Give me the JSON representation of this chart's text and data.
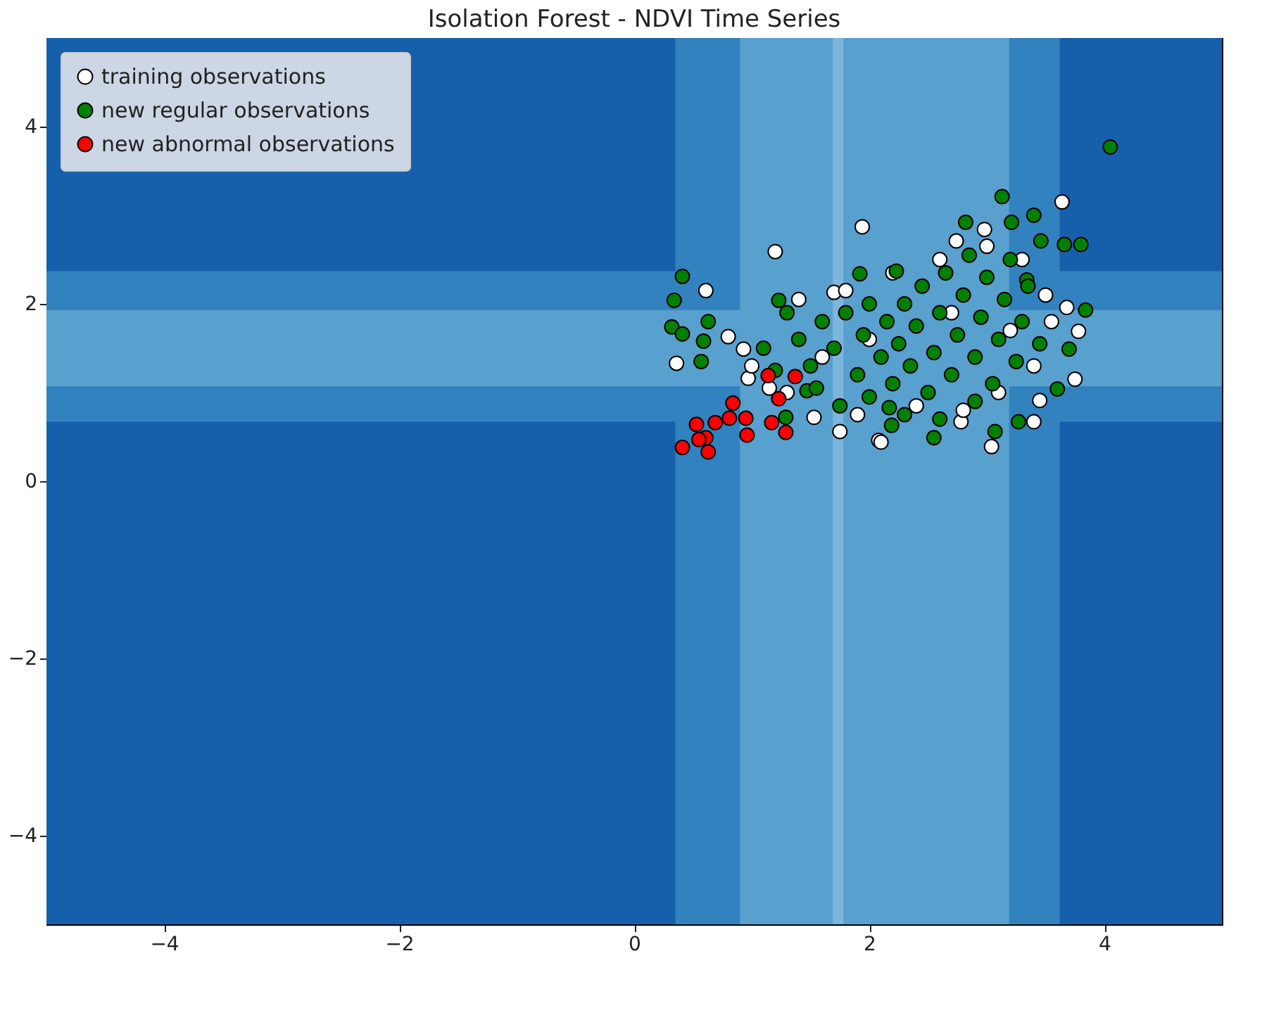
{
  "chart_data": {
    "type": "scatter",
    "title": "Isolation Forest - NDVI Time Series",
    "xlim": [
      -5,
      5
    ],
    "ylim": [
      -5,
      5
    ],
    "xticks": [
      -4,
      -2,
      0,
      2,
      4
    ],
    "yticks": [
      -4,
      -2,
      0,
      2,
      4
    ],
    "grid": false,
    "legend": "top left",
    "marker": "circle",
    "bands": [
      {
        "axis": "x",
        "from": -5,
        "to": 5,
        "color": "#1660ab"
      },
      {
        "axis": "y",
        "from": 0.67,
        "to": 2.37,
        "color": "#3282bf"
      },
      {
        "axis": "x",
        "from": 0.35,
        "to": 3.62,
        "color": "#3282bf"
      },
      {
        "axis": "y",
        "from": 1.07,
        "to": 1.93,
        "color": "#58a0cd"
      },
      {
        "axis": "x",
        "from": 0.9,
        "to": 3.19,
        "color": "#58a0cd"
      },
      {
        "axis": "x",
        "from": 1.69,
        "to": 1.78,
        "color": "#7db5dd"
      }
    ],
    "series": [
      {
        "name": "training observations",
        "color": "#ffffff",
        "x": [
          1.94,
          1.2,
          0.61,
          0.36,
          0.8,
          0.93,
          0.97,
          1.53,
          1.75,
          2.08,
          1.7,
          3.64,
          3.68,
          3.78,
          3.75,
          3.45,
          3.4,
          2.78,
          3.04,
          2.1,
          2.74,
          2.98,
          1.4,
          1.8,
          2.2,
          2.6,
          3.0,
          3.3,
          3.5,
          3.55,
          3.4,
          3.1,
          2.8,
          2.4,
          1.9,
          1.3,
          1.0,
          1.15,
          2.0,
          2.7,
          3.2,
          1.6
        ],
        "values": [
          2.87,
          2.59,
          2.15,
          1.33,
          1.63,
          1.49,
          1.16,
          0.72,
          0.56,
          0.46,
          2.13,
          3.15,
          1.96,
          1.69,
          1.15,
          0.91,
          0.67,
          0.67,
          0.39,
          0.44,
          2.71,
          2.84,
          2.05,
          2.15,
          2.35,
          2.5,
          2.65,
          2.5,
          2.1,
          1.8,
          1.3,
          1.0,
          0.8,
          0.85,
          0.75,
          1.0,
          1.3,
          1.05,
          1.6,
          1.9,
          1.7,
          1.4
        ]
      },
      {
        "name": "new regular observations",
        "color": "#008000",
        "x": [
          4.05,
          3.13,
          3.66,
          3.8,
          3.84,
          3.7,
          3.6,
          3.27,
          3.07,
          2.55,
          2.19,
          2.23,
          2.82,
          3.21,
          3.4,
          3.46,
          3.34,
          0.41,
          1.92,
          0.34,
          0.32,
          0.41,
          0.63,
          0.59,
          0.57,
          1.23,
          1.47,
          1.29,
          2.17,
          1.3,
          1.4,
          1.5,
          1.6,
          1.7,
          1.8,
          1.9,
          1.95,
          2.0,
          2.1,
          2.15,
          2.2,
          2.25,
          2.3,
          2.35,
          2.4,
          2.45,
          2.5,
          2.55,
          2.6,
          2.65,
          2.7,
          2.75,
          2.8,
          2.85,
          2.9,
          2.95,
          3.0,
          3.05,
          3.1,
          3.15,
          3.2,
          3.25,
          3.3,
          3.35,
          3.45,
          1.55,
          1.75,
          2.0,
          1.1,
          1.2,
          2.3,
          2.6,
          2.9
        ],
        "values": [
          3.77,
          3.21,
          2.67,
          2.67,
          1.93,
          1.49,
          1.04,
          0.67,
          0.56,
          0.49,
          0.63,
          2.37,
          2.92,
          2.92,
          3.0,
          2.71,
          2.27,
          2.31,
          2.34,
          2.04,
          1.74,
          1.66,
          1.8,
          1.58,
          1.35,
          2.04,
          1.02,
          0.72,
          0.83,
          1.9,
          1.6,
          1.3,
          1.8,
          1.5,
          1.9,
          1.2,
          1.65,
          2.0,
          1.4,
          1.8,
          1.1,
          1.55,
          2.0,
          1.3,
          1.75,
          2.2,
          1.0,
          1.45,
          1.9,
          2.35,
          1.2,
          1.65,
          2.1,
          2.55,
          1.4,
          1.85,
          2.3,
          1.1,
          1.6,
          2.05,
          2.5,
          1.35,
          1.8,
          2.2,
          1.55,
          1.05,
          0.85,
          0.95,
          1.5,
          1.25,
          0.75,
          0.7,
          0.9
        ]
      },
      {
        "name": "new abnormal observations",
        "color": "#ff0000",
        "x": [
          1.14,
          1.37,
          0.84,
          1.23,
          0.53,
          0.69,
          0.81,
          0.95,
          1.17,
          1.29,
          0.96,
          0.61,
          0.41,
          0.63,
          0.55
        ],
        "values": [
          1.19,
          1.18,
          0.88,
          0.93,
          0.64,
          0.66,
          0.71,
          0.71,
          0.66,
          0.55,
          0.52,
          0.49,
          0.38,
          0.33,
          0.47
        ]
      }
    ]
  }
}
